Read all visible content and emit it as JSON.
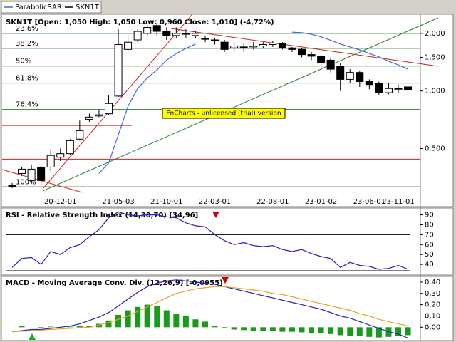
{
  "chart_data": [
    {
      "type": "candlestick",
      "title": "SKN1T [Open: 1,050  High: 1,050  Low: 0,960  Close: 1,010] (-4,72%)",
      "watermark": "FnCharts - unlicensed (trial) version",
      "log_scale": true,
      "categories": [
        null,
        null,
        null,
        null,
        null,
        "20-12-01",
        null,
        null,
        null,
        null,
        null,
        "21-05-03",
        null,
        null,
        null,
        null,
        "21-10-01",
        null,
        null,
        null,
        null,
        "22-03-01",
        null,
        null,
        null,
        null,
        null,
        "22-08-01",
        null,
        null,
        null,
        null,
        "23-01-02",
        null,
        null,
        null,
        null,
        "23-06-01",
        null,
        null,
        "23-11-01",
        null
      ],
      "ylim": [
        0.28,
        2.52
      ],
      "yticks": [
        {
          "value": 2,
          "label": "2,000"
        },
        {
          "value": 1.5,
          "label": "1,500"
        },
        {
          "value": 1,
          "label": "1,000"
        },
        {
          "value": 0.5,
          "label": "0,500"
        }
      ],
      "levels": [
        {
          "label": "23,6%",
          "value": 2.0
        },
        {
          "label": "38,2%",
          "value": 1.67
        },
        {
          "label": "50%",
          "value": 1.35
        },
        {
          "label": "61,8%",
          "value": 1.1
        },
        {
          "label": "76,4%",
          "value": 0.8
        },
        {
          "label": "100%",
          "value": 0.315
        }
      ],
      "level_color": "#2e7d2e",
      "hlines": [
        0.66,
        0.44,
        0.315
      ],
      "hline_color": "#cc2222",
      "series": [
        {
          "name": "SKN1T",
          "color": "#000000",
          "open": [
            0.32,
            0.37,
            0.34,
            0.4,
            0.4,
            0.45,
            0.47,
            0.56,
            0.71,
            0.74,
            0.76,
            0.94,
            1.65,
            1.85,
            2.0,
            2.2,
            2.05,
            1.95,
            2.0,
            1.95,
            1.88,
            1.85,
            1.8,
            1.68,
            1.7,
            1.7,
            1.72,
            1.75,
            1.78,
            1.68,
            1.65,
            1.55,
            1.52,
            1.45,
            1.35,
            1.15,
            1.25,
            1.12,
            1.1,
            0.98,
            1.03,
            1.05
          ],
          "high": [
            0.33,
            0.4,
            0.41,
            0.41,
            0.49,
            0.5,
            0.56,
            0.7,
            0.76,
            0.8,
            0.95,
            2.1,
            1.95,
            2.1,
            2.2,
            2.25,
            2.15,
            2.15,
            2.1,
            2.05,
            1.95,
            1.9,
            1.85,
            1.8,
            1.78,
            1.8,
            1.8,
            1.82,
            1.8,
            1.7,
            1.68,
            1.6,
            1.55,
            1.5,
            1.4,
            1.3,
            1.28,
            1.15,
            1.12,
            1.1,
            1.08,
            1.05
          ],
          "low": [
            0.31,
            0.36,
            0.33,
            0.32,
            0.38,
            0.43,
            0.46,
            0.55,
            0.69,
            0.73,
            0.75,
            0.93,
            1.6,
            1.8,
            1.95,
            1.95,
            1.85,
            1.9,
            1.9,
            1.9,
            1.8,
            1.75,
            1.6,
            1.6,
            1.6,
            1.65,
            1.68,
            1.7,
            1.65,
            1.6,
            1.5,
            1.45,
            1.35,
            1.25,
            1.0,
            1.1,
            1.05,
            1.02,
            0.95,
            0.96,
            0.98,
            0.96
          ],
          "close": [
            0.32,
            0.39,
            0.39,
            0.34,
            0.46,
            0.47,
            0.55,
            0.62,
            0.73,
            0.75,
            0.86,
            1.75,
            1.8,
            2.05,
            2.15,
            2.05,
            1.95,
            2.0,
            1.98,
            2.0,
            1.87,
            1.83,
            1.65,
            1.72,
            1.7,
            1.72,
            1.75,
            1.78,
            1.68,
            1.65,
            1.55,
            1.52,
            1.4,
            1.3,
            1.15,
            1.25,
            1.12,
            1.08,
            0.98,
            1.03,
            1.03,
            1.01
          ]
        },
        {
          "name": "ParabolicSAR",
          "color": "#4169e1",
          "values": [
            null,
            null,
            null,
            null,
            null,
            null,
            null,
            null,
            null,
            0.37,
            0.42,
            0.59,
            0.83,
            1.03,
            1.17,
            1.29,
            1.45,
            1.57,
            1.67,
            1.76,
            null,
            null,
            null,
            null,
            null,
            null,
            null,
            null,
            null,
            2.03,
            2.02,
            1.98,
            1.92,
            1.84,
            1.76,
            1.7,
            1.64,
            1.57,
            1.51,
            1.43,
            1.37,
            1.3
          ]
        }
      ]
    },
    {
      "type": "line",
      "title": "RSI - Relative Strength Index (14,30,70) [34,96]",
      "ylim": [
        30,
        94
      ],
      "yticks": [
        90,
        80,
        70,
        60,
        50,
        40
      ],
      "levels": [
        70,
        30
      ],
      "series": [
        {
          "color": "#2020c0",
          "values": [
            37,
            46,
            47,
            40,
            53,
            50,
            57,
            60,
            68,
            75,
            87,
            93,
            90,
            89,
            90,
            90,
            88,
            87,
            82,
            79,
            78,
            70,
            64,
            60,
            62,
            59,
            58,
            59,
            55,
            53,
            55,
            51,
            48,
            46,
            37,
            42,
            39,
            38,
            35,
            36,
            39,
            35
          ]
        }
      ]
    },
    {
      "type": "macd",
      "title": "MACD - Moving Average Conv. Div. (12,26,9) [-0,0955]",
      "ylim": [
        -0.08,
        0.45
      ],
      "yticks": [
        {
          "value": 0.4,
          "label": "0,40"
        },
        {
          "value": 0.3,
          "label": "0,30"
        },
        {
          "value": 0.2,
          "label": "0,20"
        },
        {
          "value": 0.1,
          "label": "0,10"
        },
        {
          "value": 0,
          "label": "0,00"
        }
      ],
      "series": [
        {
          "kind": "bar",
          "color": "#1a9a1a",
          "values": [
            0.0,
            0.01,
            0.0,
            -0.005,
            0.005,
            0.0,
            0.005,
            0.01,
            0.01,
            0.03,
            0.06,
            0.11,
            0.15,
            0.18,
            0.2,
            0.19,
            0.15,
            0.12,
            0.1,
            0.07,
            0.05,
            0.01,
            -0.01,
            -0.02,
            -0.025,
            -0.03,
            -0.03,
            -0.035,
            -0.04,
            -0.04,
            -0.045,
            -0.05,
            -0.055,
            -0.06,
            -0.07,
            -0.075,
            -0.08,
            -0.085,
            -0.09,
            -0.085,
            -0.08,
            -0.07
          ]
        },
        {
          "kind": "line",
          "color": "#2020c0",
          "values": [
            -0.04,
            -0.03,
            -0.02,
            -0.02,
            -0.01,
            0.0,
            0.01,
            0.03,
            0.06,
            0.09,
            0.13,
            0.19,
            0.25,
            0.31,
            0.36,
            0.39,
            0.41,
            0.42,
            0.41,
            0.4,
            0.39,
            0.38,
            0.36,
            0.34,
            0.32,
            0.3,
            0.28,
            0.26,
            0.24,
            0.22,
            0.2,
            0.18,
            0.16,
            0.13,
            0.1,
            0.08,
            0.05,
            0.02,
            -0.01,
            -0.04,
            -0.06,
            -0.0955
          ]
        },
        {
          "kind": "line",
          "color": "#f0a020",
          "values": [
            -0.04,
            -0.035,
            -0.03,
            -0.025,
            -0.02,
            -0.015,
            -0.01,
            -0.005,
            0.0,
            0.02,
            0.04,
            0.07,
            0.1,
            0.14,
            0.18,
            0.22,
            0.26,
            0.3,
            0.32,
            0.34,
            0.35,
            0.36,
            0.36,
            0.35,
            0.34,
            0.33,
            0.32,
            0.3,
            0.29,
            0.27,
            0.25,
            0.23,
            0.21,
            0.19,
            0.17,
            0.15,
            0.12,
            0.1,
            0.07,
            0.05,
            0.03,
            0.01
          ]
        }
      ]
    }
  ]
}
